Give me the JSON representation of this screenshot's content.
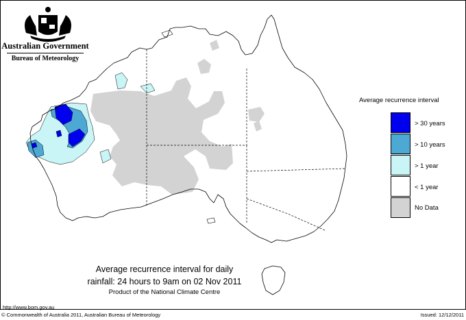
{
  "header": {
    "government": "Australian Government",
    "bureau": "Bureau of Meteorology"
  },
  "legend": {
    "title": "Average recurrence interval",
    "items": [
      {
        "label": "> 30 years",
        "color": "#0000ee"
      },
      {
        "label": "> 10 years",
        "color": "#4da8d4"
      },
      {
        "label": "> 1 year",
        "color": "#c9f5f7"
      },
      {
        "label": "< 1 year",
        "color": "#ffffff"
      },
      {
        "label": "No Data",
        "color": "#d3d3d3"
      }
    ]
  },
  "caption": {
    "line1": "Average recurrence interval for daily",
    "line2": "rainfall: 24 hours to 9am on 02 Nov 2011",
    "line3": "Product of the National Climate Centre"
  },
  "footer": {
    "url": "http://www.bom.gov.au",
    "copyright": "© Commonwealth of Australia 2011, Australian Bureau of Meteorology",
    "issued": "Issued: 12/12/2011"
  },
  "colors": {
    "no_data": "#d3d3d3",
    "over_1_year": "#c9f5f7",
    "over_10_years": "#4da8d4",
    "over_30_years": "#0000ee"
  }
}
